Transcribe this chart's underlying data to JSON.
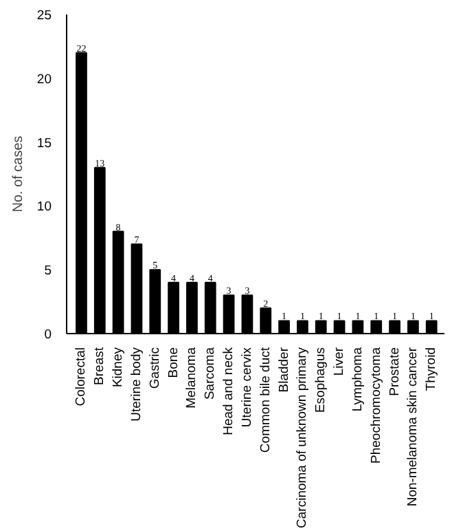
{
  "chart_data": {
    "type": "bar",
    "ylabel": "No. of cases",
    "categories": [
      "Colorectal",
      "Breast",
      "Kidney",
      "Uterine body",
      "Gastric",
      "Bone",
      "Melanoma",
      "Sarcoma",
      "Head and neck",
      "Uterine cervix",
      "Common bile duct",
      "Bladder",
      "Carcinoma of unknown primary",
      "Esophagus",
      "Liver",
      "Lymphoma",
      "Pheochromocytoma",
      "Prostate",
      "Non-melanoma skin cancer",
      "Thyroid"
    ],
    "values": [
      22,
      13,
      8,
      7,
      5,
      4,
      4,
      4,
      3,
      3,
      2,
      1,
      1,
      1,
      1,
      1,
      1,
      1,
      1,
      1
    ],
    "color": "#000000",
    "ylim": [
      0,
      25
    ],
    "yticks": [
      0,
      5,
      10,
      15,
      20,
      25
    ],
    "grid": false,
    "data_labels": true
  }
}
